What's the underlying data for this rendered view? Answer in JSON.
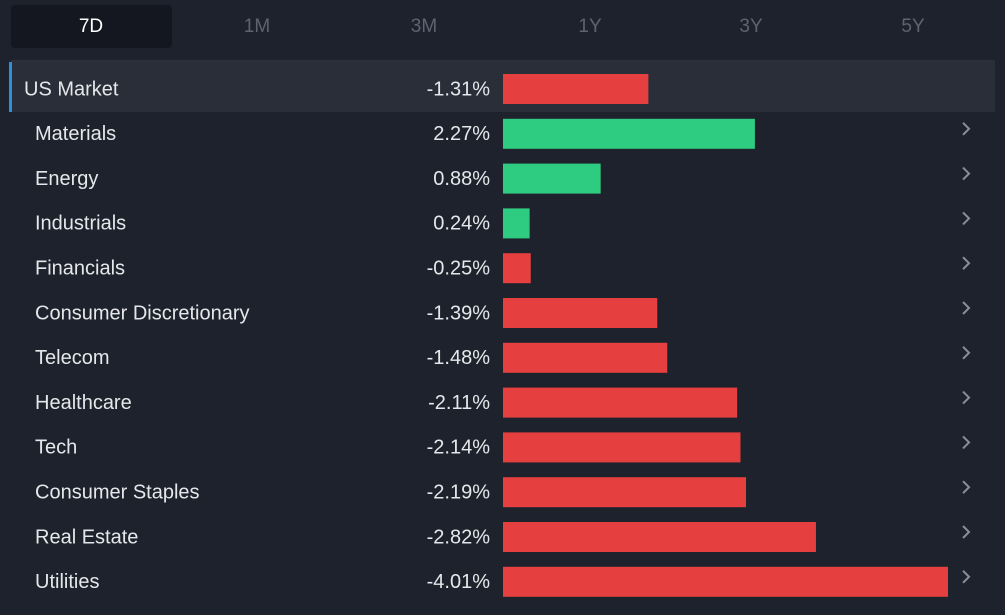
{
  "tabs": [
    "7D",
    "1M",
    "3M",
    "1Y",
    "3Y",
    "5Y"
  ],
  "active_tab": 0,
  "chart_data": {
    "type": "bar",
    "orientation": "horizontal",
    "categories": [
      "US Market",
      "Materials",
      "Energy",
      "Industrials",
      "Financials",
      "Consumer Discretionary",
      "Telecom",
      "Healthcare",
      "Tech",
      "Consumer Staples",
      "Real Estate",
      "Utilities"
    ],
    "values": [
      -1.31,
      2.27,
      0.88,
      0.24,
      -0.25,
      -1.39,
      -1.48,
      -2.11,
      -2.14,
      -2.19,
      -2.82,
      -4.01
    ],
    "value_labels": [
      "-1.31%",
      "2.27%",
      "0.88%",
      "0.24%",
      "-0.25%",
      "-1.39%",
      "-1.48%",
      "-2.11%",
      "-2.14%",
      "-2.19%",
      "-2.82%",
      "-4.01%"
    ],
    "color_positive": "#2ecc80",
    "color_negative": "#e5403f",
    "highlight_index": 0
  }
}
